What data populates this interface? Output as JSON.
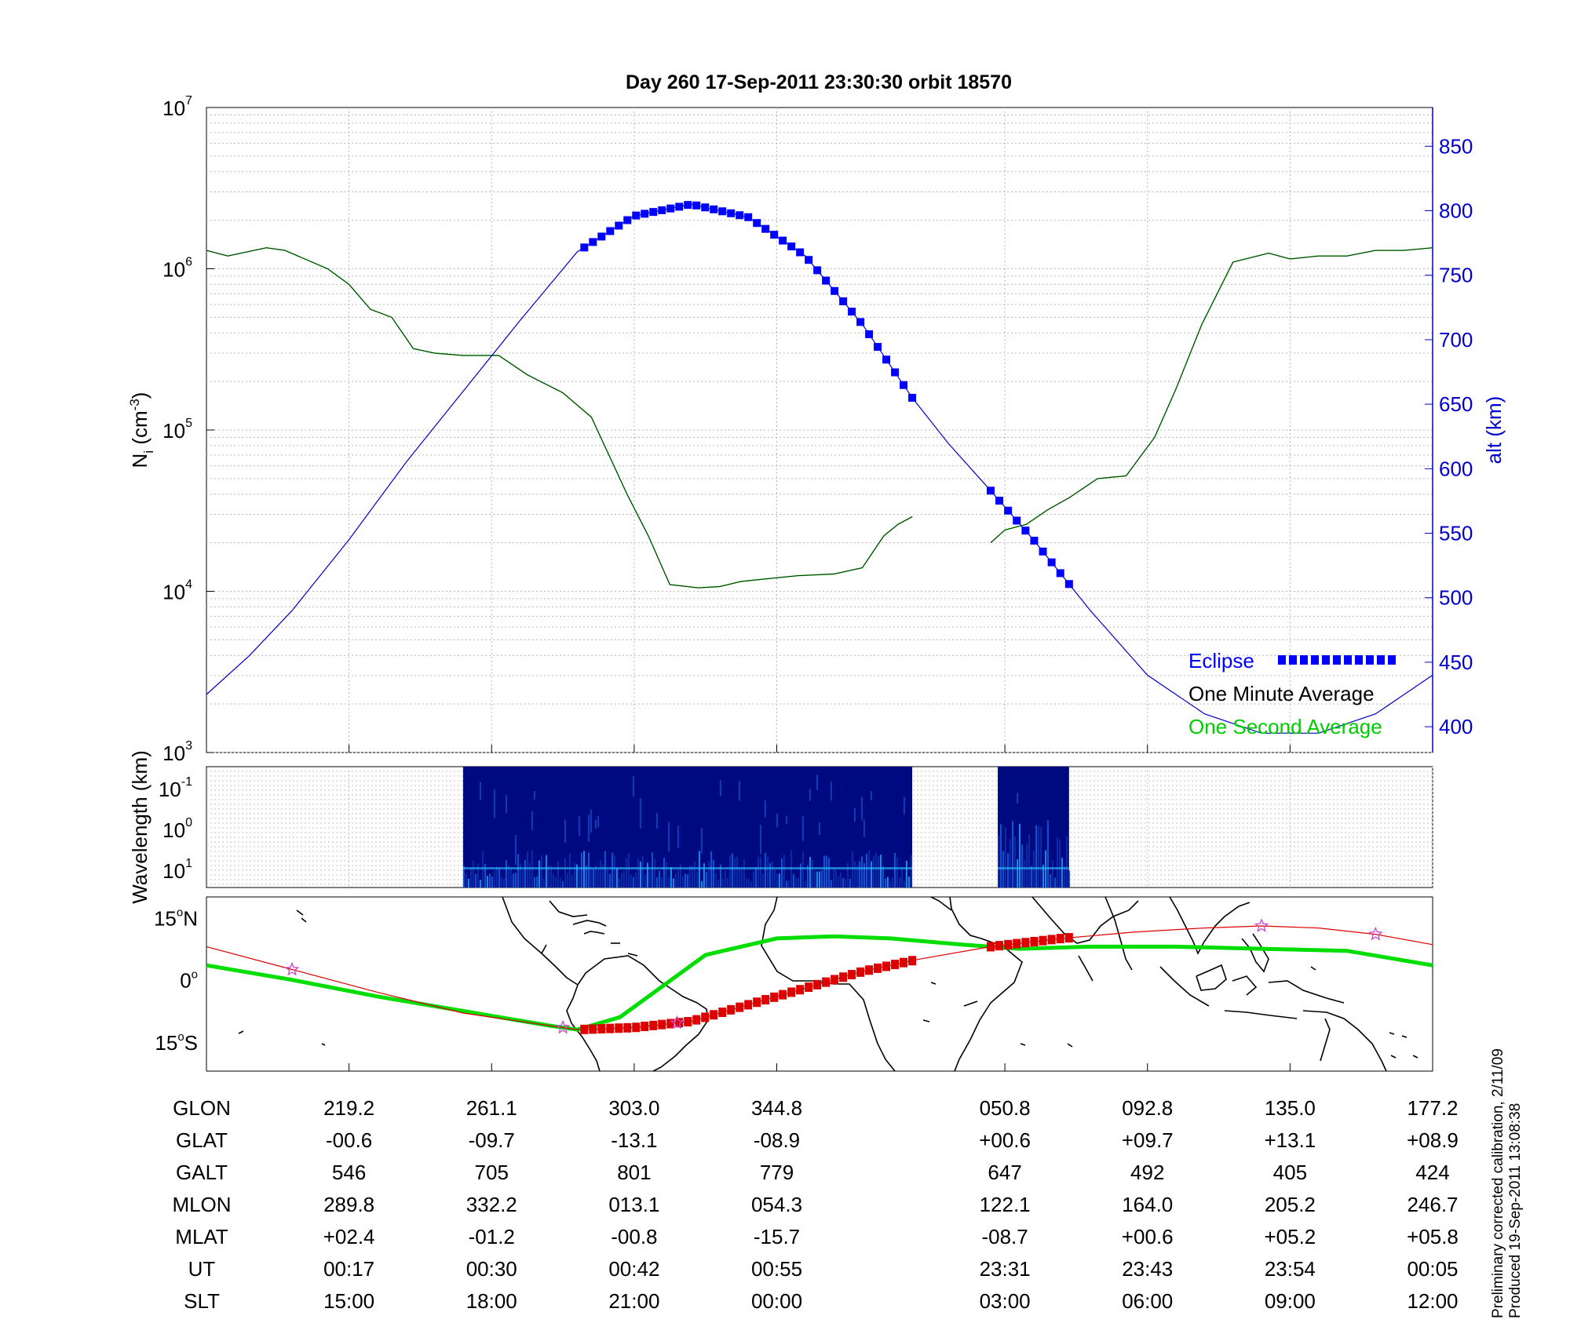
{
  "title": "Day 260  17-Sep-2011 23:30:30   orbit 18570",
  "side_note": {
    "line1": "Preliminary corrected calibration, 2/11/09",
    "line2": "Produced 19-Sep-2011 13:08:38"
  },
  "colors": {
    "altitude": "#0000cc",
    "density_minute": "#000000",
    "density_second": "#00cc00",
    "eclipse": "#0000ff",
    "track": "#dd0000",
    "magnetic_equator": "#00dd00",
    "spectrogram_bg": "#000a80",
    "station_star": "#cc44cc"
  },
  "chart_data": [
    {
      "type": "line",
      "panel": "density",
      "ylabel": "N",
      "ylabel_sub": "i",
      "ylabel_unit": "(cm",
      "ylabel_unit_sup": "-3",
      "ylabel_unit_end": ")",
      "y_scale": "log",
      "ylim": [
        1000,
        10000000
      ],
      "y_ticks": [
        {
          "base": "10",
          "exp": "3",
          "value": 1000
        },
        {
          "base": "10",
          "exp": "4",
          "value": 10000
        },
        {
          "base": "10",
          "exp": "5",
          "value": 100000
        },
        {
          "base": "10",
          "exp": "6",
          "value": 1000000
        },
        {
          "base": "10",
          "exp": "7",
          "value": 10000000
        }
      ],
      "y2label": "alt (km)",
      "y2lim": [
        380,
        880
      ],
      "y2_ticks": [
        "400",
        "450",
        "500",
        "550",
        "600",
        "650",
        "700",
        "750",
        "800",
        "850"
      ],
      "xlim": [
        0,
        8.6
      ],
      "grid": true,
      "legend_position": "bottom-right",
      "legend": [
        {
          "label": "Eclipse",
          "style": "eclipse"
        },
        {
          "label": "One Minute Average",
          "style": "minute"
        },
        {
          "label": "One Second Average",
          "style": "second"
        }
      ],
      "series": [
        {
          "style": "minute",
          "segments": [
            {
              "x": [
                0,
                0.15,
                0.42,
                0.55,
                0.85,
                1.0,
                1.15,
                1.3,
                1.45,
                1.6,
                1.8,
                2.05,
                2.25,
                2.5,
                2.7,
                2.95,
                3.1,
                3.25,
                3.45,
                3.6,
                3.75,
                3.95,
                4.15,
                4.4,
                4.6,
                4.75,
                4.85,
                4.95
              ],
              "y": [
                1300000,
                1200000,
                1350000,
                1300000,
                1000000,
                800000,
                560000,
                500000,
                320000,
                300000,
                290000,
                290000,
                220000,
                170000,
                120000,
                40000,
                22000,
                11000,
                10500,
                10700,
                11500,
                12000,
                12500,
                12800,
                14000,
                22000,
                26000,
                29000
              ]
            },
            {
              "x": [
                5.5,
                5.6,
                5.75,
                5.9,
                6.05,
                6.25,
                6.45,
                6.65,
                6.8,
                6.98,
                7.2,
                7.45,
                7.6,
                7.8,
                8.0,
                8.2,
                8.4,
                8.6
              ],
              "y": [
                20000,
                24000,
                26000,
                32000,
                38000,
                50000,
                52000,
                90000,
                180000,
                450000,
                1100000,
                1250000,
                1150000,
                1200000,
                1200000,
                1300000,
                1300000,
                1350000
              ]
            }
          ]
        },
        {
          "style": "altitude",
          "axis": "y2",
          "x": [
            0,
            0.3,
            0.6,
            1.0,
            1.4,
            1.8,
            2.2,
            2.6,
            3.0,
            3.4,
            3.8,
            4.2,
            4.6,
            4.95,
            5.2,
            5.5,
            5.8,
            6.2,
            6.6,
            7.0,
            7.4,
            7.8,
            8.2,
            8.6
          ],
          "y": [
            425,
            455,
            490,
            545,
            605,
            660,
            715,
            768,
            796,
            805,
            795,
            765,
            712,
            655,
            620,
            583,
            545,
            490,
            440,
            410,
            395,
            395,
            410,
            440
          ]
        }
      ],
      "eclipse_segments": [
        {
          "x_start": 2.65,
          "x_end": 4.95
        },
        {
          "x_start": 5.5,
          "x_end": 6.05
        }
      ]
    },
    {
      "type": "heatmap",
      "panel": "spectrogram",
      "ylabel": "Wavelength (km)",
      "y_scale": "log",
      "y_ticks": [
        {
          "base": "10",
          "exp": "-1"
        },
        {
          "base": "10",
          "exp": "0"
        },
        {
          "base": "10",
          "exp": "1"
        }
      ],
      "data_blocks": [
        {
          "x_start": 1.8,
          "x_end": 4.95
        },
        {
          "x_start": 5.55,
          "x_end": 6.05
        }
      ]
    },
    {
      "type": "line",
      "panel": "map",
      "y_ticks": [
        "15",
        "0",
        "15"
      ],
      "y_tick_suffix": [
        "N",
        "",
        "S"
      ],
      "ylim": [
        -22,
        20
      ],
      "series": [
        {
          "name": "",
          "style": "magnetic_equator",
          "x": [
            0,
            0.6,
            1.2,
            1.8,
            2.4,
            2.6,
            2.9,
            3.1,
            3.5,
            4.0,
            4.4,
            4.8,
            5.3,
            5.7,
            6.2,
            6.8,
            7.4,
            8.0,
            8.6
          ],
          "y": [
            3.5,
            0,
            -4,
            -7.5,
            -11,
            -12,
            -9,
            -4,
            6,
            10,
            10.5,
            10,
            8.5,
            7.5,
            8,
            8,
            7.5,
            7,
            3.5
          ]
        },
        {
          "name": "",
          "style": "track",
          "x": [
            0,
            0.6,
            1.2,
            1.8,
            2.4,
            2.6,
            3.0,
            3.4,
            3.8,
            4.2,
            4.6,
            5.0,
            5.5,
            6.0,
            6.5,
            7.0,
            7.4,
            7.8,
            8.2,
            8.6
          ],
          "y": [
            8,
            2.5,
            -3,
            -8,
            -11,
            -12,
            -11.5,
            -10,
            -6,
            -2,
            2,
            5,
            8,
            10,
            11.5,
            12.5,
            13,
            12.5,
            11,
            8.5
          ]
        }
      ],
      "station_markers_x": [
        0.6,
        2.5,
        3.3,
        7.4,
        8.2
      ]
    },
    {
      "type": "table",
      "panel": "ephemeris",
      "columns_x": [
        1,
        2,
        3,
        4,
        5.6,
        6.6,
        7.6,
        8.6
      ],
      "rows": [
        {
          "label": "GLON",
          "values": [
            "219.2",
            "261.1",
            "303.0",
            "344.8",
            "050.8",
            "092.8",
            "135.0",
            "177.2"
          ]
        },
        {
          "label": "GLAT",
          "values": [
            "-00.6",
            "-09.7",
            "-13.1",
            "-08.9",
            "+00.6",
            "+09.7",
            "+13.1",
            "+08.9"
          ]
        },
        {
          "label": "GALT",
          "values": [
            "546",
            "705",
            "801",
            "779",
            "647",
            "492",
            "405",
            "424"
          ]
        },
        {
          "label": "MLON",
          "values": [
            "289.8",
            "332.2",
            "013.1",
            "054.3",
            "122.1",
            "164.0",
            "205.2",
            "246.7"
          ]
        },
        {
          "label": "MLAT",
          "values": [
            "+02.4",
            "-01.2",
            "-00.8",
            "-15.7",
            "-08.7",
            "+00.6",
            "+05.2",
            "+05.8"
          ]
        },
        {
          "label": "UT",
          "values": [
            "00:17",
            "00:30",
            "00:42",
            "00:55",
            "23:31",
            "23:43",
            "23:54",
            "00:05"
          ]
        },
        {
          "label": "SLT",
          "values": [
            "15:00",
            "18:00",
            "21:00",
            "00:00",
            "03:00",
            "06:00",
            "09:00",
            "12:00"
          ]
        }
      ]
    }
  ]
}
